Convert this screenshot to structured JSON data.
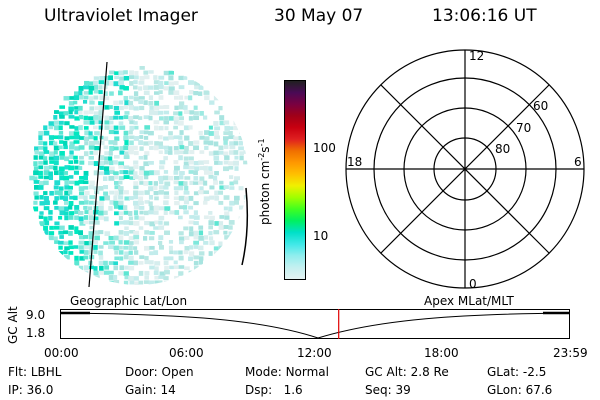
{
  "header": {
    "title": "Ultraviolet Imager",
    "date": "30 May 07",
    "time": "13:06:16 UT"
  },
  "colorbar": {
    "unit_label": "photon cm^-2s^-1",
    "tick_labels": [
      "100",
      "10"
    ],
    "colors": [
      "#202020",
      "#4a0a55",
      "#7a0040",
      "#a00018",
      "#c80010",
      "#e02020",
      "#f07000",
      "#ff9800",
      "#ffc000",
      "#f0f000",
      "#a0ff00",
      "#40ff20",
      "#00f060",
      "#00e0c8",
      "#40e8e8",
      "#90eeee",
      "#c4f0f0",
      "#e4f2f2"
    ]
  },
  "polar_plot": {
    "lat_labels": [
      "60",
      "70",
      "80"
    ],
    "mlt_labels": {
      "top": "12",
      "bottom": "0",
      "left": "18",
      "right": "6"
    }
  },
  "timeline": {
    "geo_label": "Geographic Lat/Lon",
    "apex_label": "Apex MLat/MLT",
    "y_axis_title": "GC Alt",
    "y_ticks": [
      "9.0",
      "1.8"
    ],
    "x_ticks": [
      "00:00",
      "06:00",
      "12:00",
      "18:00",
      "23:59"
    ],
    "current_time": "13:06:16",
    "marker_color": "#e00000"
  },
  "footer": [
    [
      {
        "k": "Flt:",
        "v": "LBHL"
      },
      {
        "k": "Door:",
        "v": "Open"
      },
      {
        "k": "Mode:",
        "v": "Normal"
      },
      {
        "k": "GC Alt:",
        "v": "2.8 Re"
      },
      {
        "k": "GLat:",
        "v": "-2.5"
      }
    ],
    [
      {
        "k": "IP:",
        "v": "36.0"
      },
      {
        "k": "Gain:",
        "v": "14"
      },
      {
        "k": "Dsp:",
        "v": "1.6"
      },
      {
        "k": "Seq:",
        "v": "39"
      },
      {
        "k": "GLon:",
        "v": "67.6"
      }
    ]
  ],
  "colors": {
    "aurora_cyan": "#00e8c0",
    "background": "#ffffff"
  }
}
